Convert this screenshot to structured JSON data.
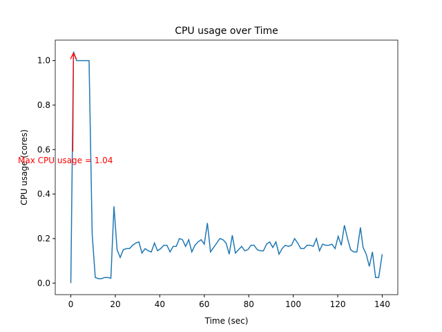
{
  "chart_data": {
    "type": "line",
    "title": "CPU usage over Time",
    "xlabel": "Time (sec)",
    "ylabel": "CPU usage (cores)",
    "x": [
      0,
      1.2,
      2.6,
      4,
      5.4,
      6.8,
      8.2,
      9.6,
      11,
      12.4,
      13.8,
      15.2,
      16.6,
      18,
      19.4,
      20.8,
      22.2,
      23.6,
      25,
      26.4,
      27.8,
      29.2,
      30.6,
      32,
      33.4,
      34.8,
      36.2,
      37.6,
      39,
      40.4,
      41.8,
      43.2,
      44.6,
      46,
      47.4,
      48.8,
      50.2,
      51.6,
      53,
      54.4,
      55.8,
      57.2,
      58.6,
      60,
      61.4,
      62.8,
      64.2,
      65.6,
      67,
      68.4,
      69.8,
      71.2,
      72.6,
      74,
      75.4,
      76.8,
      78.2,
      79.6,
      81,
      82.4,
      83.8,
      85.2,
      86.6,
      88,
      89.4,
      90.8,
      92.2,
      93.6,
      95,
      96.4,
      97.8,
      99.2,
      100.6,
      102,
      103.4,
      104.8,
      106.2,
      107.6,
      109,
      110.4,
      111.8,
      113.2,
      114.6,
      116,
      117.4,
      118.8,
      120.2,
      121.6,
      123,
      124.4,
      125.8,
      127.2,
      128.6,
      130.2,
      131.4,
      132.8,
      134.2,
      135.6,
      137,
      138.4,
      140
    ],
    "series": [
      {
        "name": "CPU usage",
        "color": "#1f77b4",
        "values": [
          0,
          1.04,
          1.0,
          1.0,
          1.0,
          1.0,
          1.0,
          0.22,
          0.025,
          0.02,
          0.02,
          0.025,
          0.025,
          0.022,
          0.345,
          0.15,
          0.115,
          0.15,
          0.155,
          0.155,
          0.17,
          0.18,
          0.185,
          0.135,
          0.155,
          0.145,
          0.14,
          0.18,
          0.145,
          0.155,
          0.17,
          0.17,
          0.14,
          0.165,
          0.165,
          0.2,
          0.195,
          0.165,
          0.195,
          0.14,
          0.17,
          0.185,
          0.195,
          0.175,
          0.27,
          0.14,
          0.16,
          0.18,
          0.2,
          0.195,
          0.18,
          0.13,
          0.215,
          0.135,
          0.15,
          0.165,
          0.145,
          0.15,
          0.17,
          0.17,
          0.15,
          0.145,
          0.145,
          0.175,
          0.185,
          0.16,
          0.185,
          0.13,
          0.155,
          0.17,
          0.165,
          0.17,
          0.2,
          0.18,
          0.155,
          0.155,
          0.17,
          0.17,
          0.165,
          0.2,
          0.145,
          0.175,
          0.17,
          0.17,
          0.175,
          0.155,
          0.21,
          0.17,
          0.26,
          0.2,
          0.15,
          0.14,
          0.14,
          0.25,
          0.16,
          0.13,
          0.075,
          0.14,
          0.025,
          0.025,
          0.13
        ]
      }
    ],
    "xlim": [
      -7,
      147
    ],
    "ylim": [
      -0.052,
      1.092
    ],
    "xticks": [
      0,
      20,
      40,
      60,
      80,
      100,
      120,
      140
    ],
    "yticks": [
      {
        "value": 0,
        "label": "0.0"
      },
      {
        "value": 0.2,
        "label": "0.2"
      },
      {
        "value": 0.4,
        "label": "0.4"
      },
      {
        "value": 0.6,
        "label": "0.6"
      },
      {
        "value": 0.8,
        "label": "0.8"
      },
      {
        "value": 1,
        "label": "1.0"
      }
    ],
    "annotations": [
      {
        "text": "Max CPU usage = 1.04",
        "x": 1.2,
        "y": 1.04,
        "color": "red"
      }
    ]
  }
}
